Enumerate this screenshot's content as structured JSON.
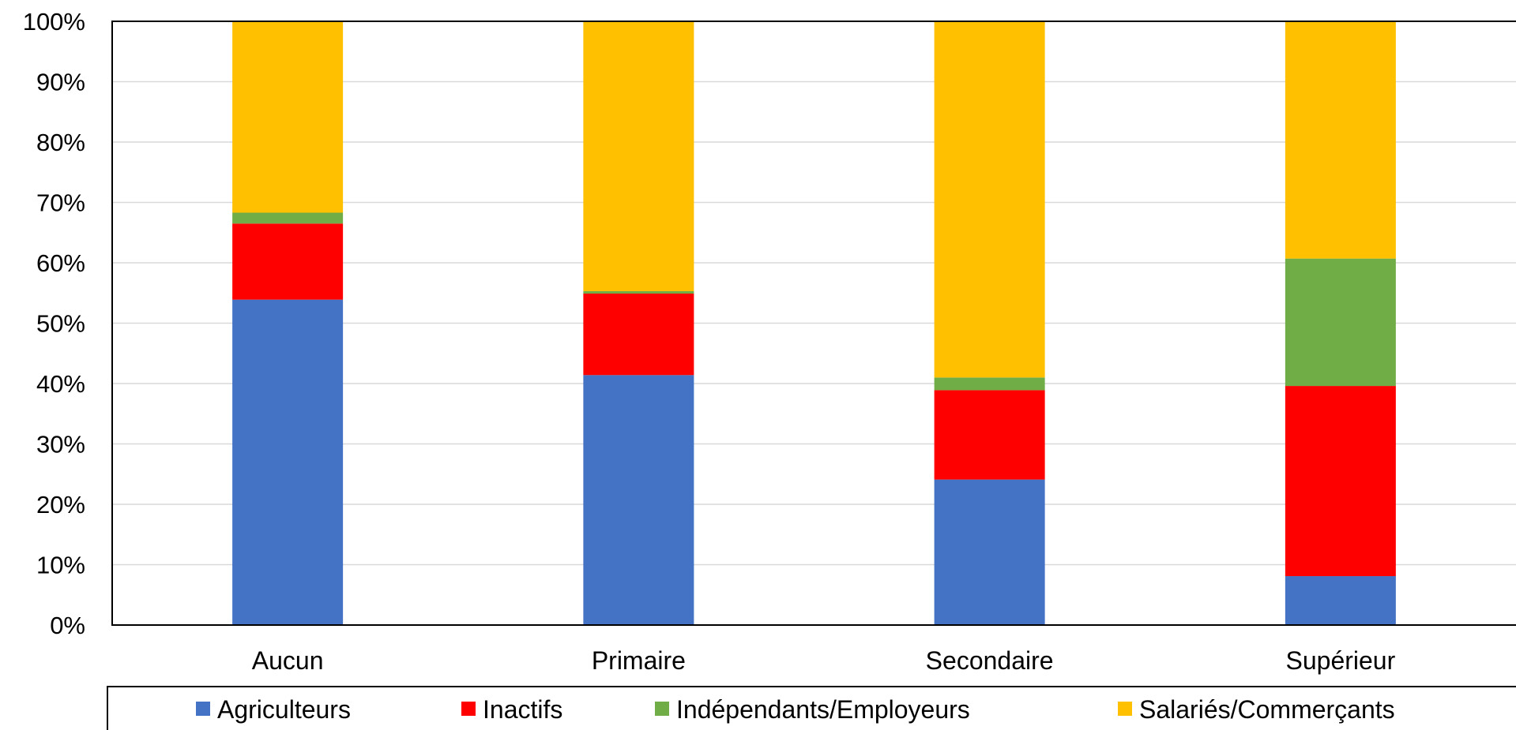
{
  "chart_data": {
    "type": "bar",
    "stacked": true,
    "categories": [
      "Aucun",
      "Primaire",
      "Secondaire",
      "Supérieur"
    ],
    "series": [
      {
        "name": "Agriculteurs",
        "color": "#4472C4",
        "values": [
          53.9,
          41.4,
          24.1,
          8.1
        ]
      },
      {
        "name": "Inactifs",
        "color": "#FF0000",
        "values": [
          12.6,
          13.5,
          14.8,
          31.5
        ]
      },
      {
        "name": "Indépendants/Employeurs",
        "color": "#70AD47",
        "values": [
          1.8,
          0.4,
          2.1,
          21.1
        ]
      },
      {
        "name": "Salariés/Commerçants",
        "color": "#FFC000",
        "values": [
          31.7,
          44.7,
          59.0,
          39.3
        ]
      }
    ],
    "y_ticks": [
      "0%",
      "10%",
      "20%",
      "30%",
      "40%",
      "50%",
      "60%",
      "70%",
      "80%",
      "90%",
      "100%"
    ],
    "ylim": [
      0,
      100
    ],
    "grid": true,
    "legend_position": "bottom"
  }
}
